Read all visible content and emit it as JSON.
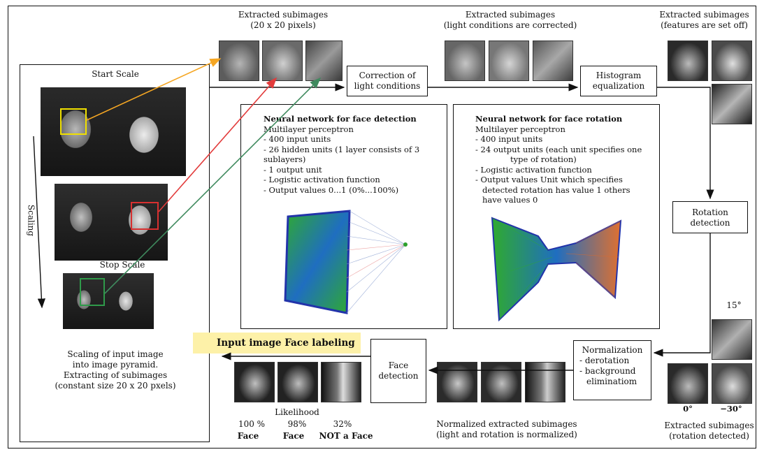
{
  "labels": {
    "extracted_top1_l1": "Extracted subimages",
    "extracted_top1_l2": "(20 x 20 pixels)",
    "extracted_top2_l1": "Extracted subimages",
    "extracted_top2_l2": "(light conditions are corrected)",
    "extracted_top3_l1": "Extracted subimages",
    "extracted_top3_l2": "(features are set off)",
    "start_scale": "Start Scale",
    "stop_scale": "Stop Scale",
    "scaling": "Scaling",
    "pyramid_l1": "Scaling of input image",
    "pyramid_l2": "into image pyramid.",
    "pyramid_l3": "Extracting of subimages",
    "pyramid_l4": "(constant size 20 x 20 pxels)",
    "correction_l1": "Correction of",
    "correction_l2": "light conditions",
    "histogram_l1": "Histogram",
    "histogram_l2": "equalization",
    "rotation_l1": "Rotation",
    "rotation_l2": "detection",
    "normalization_l1": "Normalization",
    "normalization_l2": "- derotation",
    "normalization_l3": "- background",
    "normalization_l4": "eliminatiom",
    "face_detection_l1": "Face",
    "face_detection_l2": "detection",
    "input_labeling": "Input image Face labeling",
    "likelihood": "Likelihood",
    "likelihood_vals": [
      "100 %",
      "98%",
      "32%"
    ],
    "likelihood_results": [
      "Face",
      "Face",
      "NOT a Face"
    ],
    "normalized_l1": "Normalized extracted subimages",
    "normalized_l2": "(light and rotation is normalized)",
    "angle_15": "15°",
    "angle_0": "0°",
    "angle_m30": "−30°",
    "rotdet_l1": "Extracted subimages",
    "rotdet_l2": "(rotation detected)"
  },
  "nn_detection": {
    "title": "Neural network for face detection",
    "lines": [
      "Multilayer perceptron",
      "- 400 input units",
      "- 26 hidden units (1 layer consists of 3",
      "sublayers)",
      "- 1 output unit",
      "- Logistic activation function",
      "- Output values 0...1 (0%...100%)"
    ]
  },
  "nn_rotation": {
    "title": "Neural network for face rotation",
    "lines": [
      "Multilayer perceptron",
      "- 400 input units",
      "- 24 output units (each unit specifies one",
      "type of rotation)",
      "- Logistic activation function",
      "- Output values Unit which specifies",
      "detected rotation has value 1 others",
      "have values 0"
    ]
  },
  "colors": {
    "arrow_orange": "#f5a623",
    "arrow_red": "#e23b3b",
    "arrow_green": "#3f8a5e",
    "highlight": "#fdf1a8",
    "nn_green": "#2faa2f",
    "nn_blue": "#2233aa"
  }
}
